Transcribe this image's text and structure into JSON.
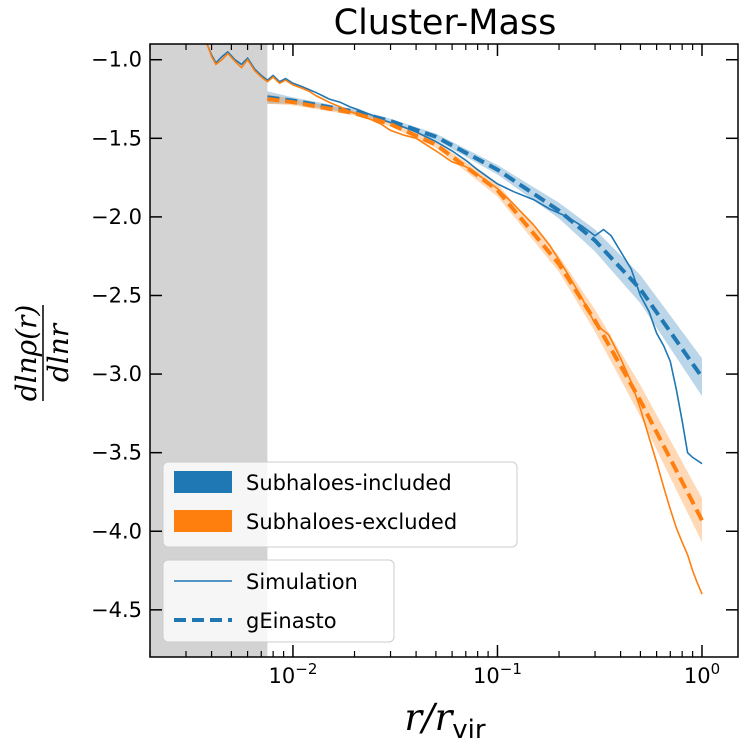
{
  "chart_data": {
    "type": "line",
    "title": "Cluster-Mass",
    "xlabel": "r/r_vir",
    "xlabel_main": "r/r",
    "xlabel_sub": "vir",
    "ylabel": "dlnρ(r)/dlnr",
    "ylabel_num": "dlnρ(r)",
    "ylabel_den": "dlnr",
    "xscale": "log",
    "xlim": [
      0.002,
      1.5
    ],
    "ylim": [
      -4.8,
      -0.9
    ],
    "x_ticks": [
      {
        "value": 0.01,
        "base": "10",
        "exp": "−2"
      },
      {
        "value": 0.1,
        "base": "10",
        "exp": "−1"
      },
      {
        "value": 1,
        "base": "10",
        "exp": "0"
      }
    ],
    "y_ticks": [
      {
        "value": -1.0,
        "label": "−1.0"
      },
      {
        "value": -1.5,
        "label": "−1.5"
      },
      {
        "value": -2.0,
        "label": "−2.0"
      },
      {
        "value": -2.5,
        "label": "−2.5"
      },
      {
        "value": -3.0,
        "label": "−3.0"
      },
      {
        "value": -3.5,
        "label": "−3.5"
      },
      {
        "value": -4.0,
        "label": "−4.0"
      },
      {
        "value": -4.5,
        "label": "−4.5"
      }
    ],
    "shaded_region": {
      "x": [
        0.002,
        0.0075
      ],
      "color": "#d3d3d3"
    },
    "legend1": {
      "placement": "lower-left",
      "entries": [
        {
          "label": "Subhaloes-included",
          "color": "#1f77b4"
        },
        {
          "label": "Subhaloes-excluded",
          "color": "#ff7f0e"
        }
      ]
    },
    "legend2": {
      "placement": "lower-left",
      "entries": [
        {
          "label": "Simulation",
          "style": "solid"
        },
        {
          "label": "gEinasto",
          "style": "dashed"
        }
      ],
      "color": "#1f77b4"
    },
    "series": [
      {
        "name": "Subhaloes-included Simulation",
        "color": "#1f77b4",
        "style": "solid",
        "x": [
          0.0038,
          0.004,
          0.0042,
          0.0045,
          0.0048,
          0.0052,
          0.0056,
          0.006,
          0.0065,
          0.007,
          0.0075,
          0.008,
          0.0086,
          0.0092,
          0.01,
          0.011,
          0.012,
          0.013,
          0.014,
          0.015,
          0.017,
          0.019,
          0.021,
          0.024,
          0.027,
          0.03,
          0.035,
          0.04,
          0.05,
          0.06,
          0.07,
          0.08,
          0.1,
          0.12,
          0.15,
          0.18,
          0.22,
          0.26,
          0.3,
          0.33,
          0.36,
          0.4,
          0.45,
          0.5,
          0.55,
          0.6,
          0.65,
          0.7,
          0.75,
          0.8,
          0.85,
          0.9,
          0.95,
          1.0
        ],
        "y": [
          -0.9,
          -0.97,
          -1.02,
          -0.98,
          -0.95,
          -1.0,
          -1.03,
          -0.99,
          -1.06,
          -1.1,
          -1.13,
          -1.1,
          -1.14,
          -1.12,
          -1.15,
          -1.17,
          -1.19,
          -1.21,
          -1.23,
          -1.25,
          -1.27,
          -1.3,
          -1.32,
          -1.35,
          -1.38,
          -1.4,
          -1.43,
          -1.46,
          -1.52,
          -1.58,
          -1.64,
          -1.7,
          -1.79,
          -1.84,
          -1.89,
          -1.95,
          -2.0,
          -2.06,
          -2.12,
          -2.08,
          -2.12,
          -2.22,
          -2.33,
          -2.5,
          -2.6,
          -2.74,
          -2.82,
          -2.92,
          -3.1,
          -3.3,
          -3.5,
          -3.53,
          -3.55,
          -3.57
        ]
      },
      {
        "name": "Subhaloes-included gEinasto",
        "color": "#1f77b4",
        "style": "dashed",
        "band_halfwidth": [
          0.04,
          0.02,
          0.015,
          0.015,
          0.02,
          0.03,
          0.05,
          0.07,
          0.09,
          0.12
        ],
        "x": [
          0.0075,
          0.01,
          0.02,
          0.03,
          0.05,
          0.1,
          0.2,
          0.3,
          0.5,
          1.0
        ],
        "y": [
          -1.24,
          -1.26,
          -1.33,
          -1.39,
          -1.49,
          -1.7,
          -1.96,
          -2.15,
          -2.46,
          -3.02
        ]
      },
      {
        "name": "Subhaloes-excluded Simulation",
        "color": "#ff7f0e",
        "style": "solid",
        "x": [
          0.0038,
          0.004,
          0.0042,
          0.0045,
          0.0048,
          0.0052,
          0.0056,
          0.006,
          0.0065,
          0.007,
          0.0075,
          0.008,
          0.0086,
          0.0092,
          0.01,
          0.011,
          0.012,
          0.013,
          0.014,
          0.015,
          0.017,
          0.019,
          0.021,
          0.024,
          0.027,
          0.03,
          0.035,
          0.04,
          0.05,
          0.06,
          0.07,
          0.08,
          0.1,
          0.12,
          0.15,
          0.18,
          0.22,
          0.26,
          0.3,
          0.35,
          0.4,
          0.45,
          0.5,
          0.55,
          0.6,
          0.65,
          0.7,
          0.75,
          0.8,
          0.85,
          0.9,
          0.95,
          1.0
        ],
        "y": [
          -0.9,
          -0.98,
          -1.03,
          -1.0,
          -0.96,
          -1.01,
          -1.05,
          -1.0,
          -1.07,
          -1.11,
          -1.14,
          -1.11,
          -1.15,
          -1.13,
          -1.16,
          -1.18,
          -1.2,
          -1.23,
          -1.25,
          -1.27,
          -1.3,
          -1.33,
          -1.35,
          -1.38,
          -1.41,
          -1.45,
          -1.48,
          -1.5,
          -1.58,
          -1.65,
          -1.68,
          -1.73,
          -1.82,
          -1.92,
          -2.05,
          -2.18,
          -2.36,
          -2.52,
          -2.68,
          -2.75,
          -2.9,
          -3.05,
          -3.22,
          -3.4,
          -3.56,
          -3.72,
          -3.86,
          -3.98,
          -4.07,
          -4.15,
          -4.25,
          -4.33,
          -4.4
        ]
      },
      {
        "name": "Subhaloes-excluded gEinasto",
        "color": "#ff7f0e",
        "style": "dashed",
        "band_halfwidth": [
          0.03,
          0.02,
          0.015,
          0.015,
          0.02,
          0.04,
          0.05,
          0.07,
          0.1,
          0.14
        ],
        "x": [
          0.0075,
          0.01,
          0.02,
          0.03,
          0.05,
          0.1,
          0.2,
          0.3,
          0.5,
          1.0
        ],
        "y": [
          -1.25,
          -1.27,
          -1.34,
          -1.41,
          -1.54,
          -1.83,
          -2.3,
          -2.66,
          -3.17,
          -3.93
        ]
      }
    ]
  }
}
